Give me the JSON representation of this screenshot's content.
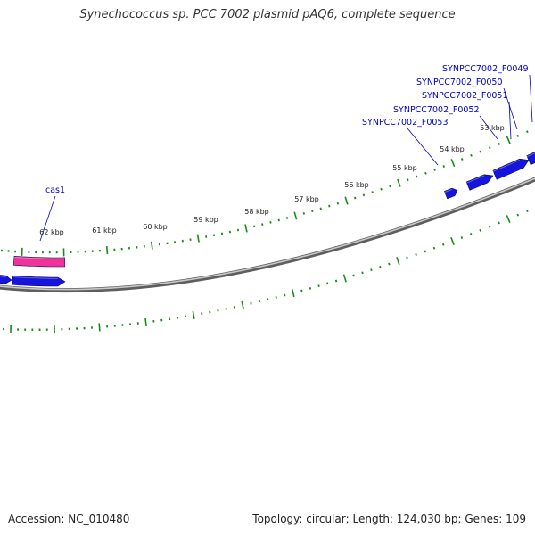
{
  "title": "Synechococcus sp. PCC 7002 plasmid pAQ6, complete sequence",
  "footer": {
    "accession": "Accession: NC_010480",
    "topology": "Topology: circular; Length: 124,030 bp; Genes: 109"
  },
  "colors": {
    "backbone": "#7a7a7a",
    "tick": "#1a8a1a",
    "gene_forward": "#1515dd",
    "gene_special": "#ee3399",
    "label": "#0000cc"
  },
  "tick_labels": [
    "53 kbp",
    "54 kbp",
    "55 kbp",
    "56 kbp",
    "57 kbp",
    "58 kbp",
    "59 kbp",
    "60 kbp",
    "61 kbp",
    "62 kbp"
  ],
  "gene_labels": [
    "SYNPCC7002_F0049",
    "SYNPCC7002_F0050",
    "SYNPCC7002_F0051",
    "SYNPCC7002_F0052",
    "SYNPCC7002_F0053",
    "cas1"
  ]
}
